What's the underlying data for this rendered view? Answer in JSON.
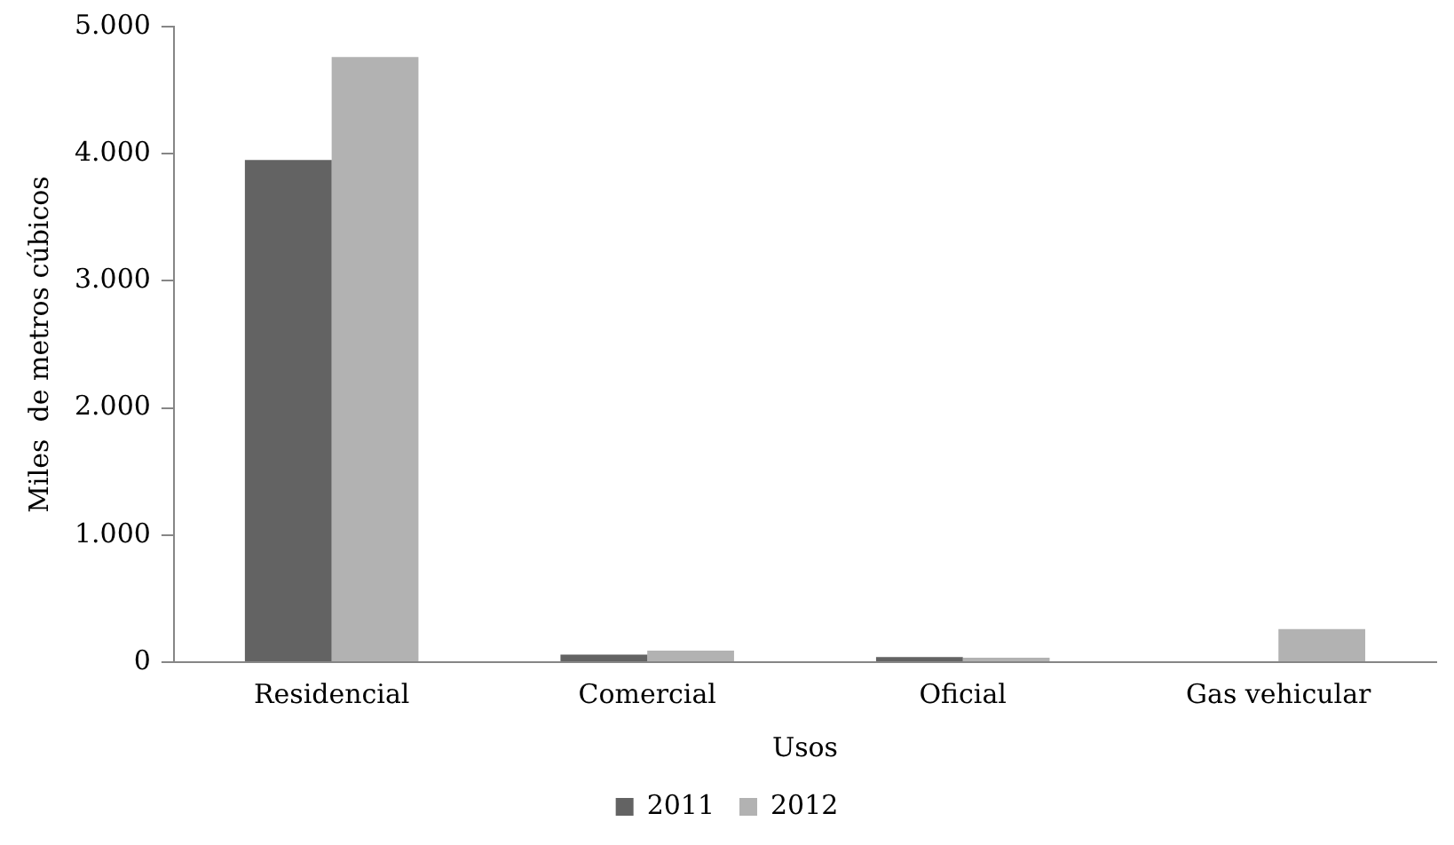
{
  "chart_data": {
    "type": "bar",
    "xlabel": "Usos",
    "ylabel": "Miles  de metros cúbicos",
    "categories": [
      "Residencial",
      "Comercial",
      "Oficial",
      "Gas vehicular"
    ],
    "series": [
      {
        "name": "2011",
        "color": "#636363",
        "values": [
          3950,
          60,
          40,
          0
        ]
      },
      {
        "name": "2012",
        "color": "#b2b2b2",
        "values": [
          4760,
          90,
          35,
          260
        ]
      }
    ],
    "ylim": [
      0,
      5000
    ],
    "yticks": [
      {
        "value": 0,
        "label": "0"
      },
      {
        "value": 1000,
        "label": "1.000"
      },
      {
        "value": 2000,
        "label": "2.000"
      },
      {
        "value": 3000,
        "label": "3.000"
      },
      {
        "value": 4000,
        "label": "4.000"
      },
      {
        "value": 5000,
        "label": "5.000"
      }
    ],
    "grid": false,
    "legend": "bottom"
  }
}
